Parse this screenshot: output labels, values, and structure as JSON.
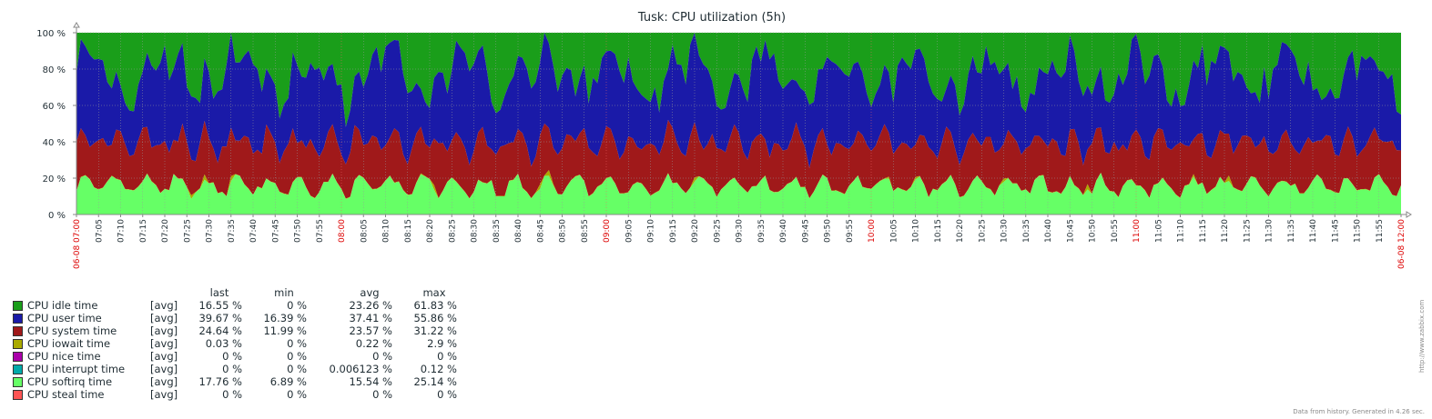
{
  "chart_data": {
    "type": "area",
    "title": "Tusk: CPU utilization (5h)",
    "stacked": true,
    "y_ticks": [
      "100 %",
      "80 %",
      "60 %",
      "40 %",
      "20 %",
      "0 %"
    ],
    "ylim": [
      0,
      100
    ],
    "x_start_label": "06-08 07:00",
    "x_end_label": "06-08 12:00",
    "x_tick_labels": [
      "07:05",
      "07:10",
      "07:15",
      "07:20",
      "07:25",
      "07:30",
      "07:35",
      "07:40",
      "07:45",
      "07:50",
      "07:55",
      "08:00",
      "08:05",
      "08:10",
      "08:15",
      "08:20",
      "08:25",
      "08:30",
      "08:35",
      "08:40",
      "08:45",
      "08:50",
      "08:55",
      "09:00",
      "09:05",
      "09:10",
      "09:15",
      "09:20",
      "09:25",
      "09:30",
      "09:35",
      "09:40",
      "09:45",
      "09:50",
      "09:55",
      "10:00",
      "10:05",
      "10:10",
      "10:15",
      "10:20",
      "10:25",
      "10:30",
      "10:35",
      "10:40",
      "10:45",
      "10:50",
      "10:55",
      "11:00",
      "11:05",
      "11:10",
      "11:15",
      "11:20",
      "11:25",
      "11:30",
      "11:35",
      "11:40",
      "11:45",
      "11:50",
      "11:55"
    ],
    "hour_tick_labels": [
      "08:00",
      "09:00",
      "10:00",
      "11:00"
    ],
    "series": [
      {
        "name": "CPU softirq time",
        "color": "#66ff66",
        "min": 6.89,
        "avg": 15.54,
        "max": 25.14
      },
      {
        "name": "CPU iowait time",
        "color": "#aaaa00",
        "min": 0,
        "avg": 0.22,
        "max": 2.9
      },
      {
        "name": "CPU system time",
        "color": "#a0191a",
        "min": 11.99,
        "avg": 23.57,
        "max": 31.22
      },
      {
        "name": "CPU user time",
        "color": "#1a1aa8",
        "min": 16.39,
        "avg": 37.41,
        "max": 55.86
      },
      {
        "name": "CPU idle time",
        "color": "#1a9e1a",
        "min": 0,
        "avg": 23.26,
        "max": 61.83
      }
    ]
  },
  "legend": {
    "headers": [
      "last",
      "min",
      "avg",
      "max"
    ],
    "rows": [
      {
        "name": "CPU idle time",
        "func": "[avg]",
        "last": "16.55 %",
        "min": "0 %",
        "avg": "23.26 %",
        "max": "61.83 %",
        "color": "#1a9e1a"
      },
      {
        "name": "CPU user time",
        "func": "[avg]",
        "last": "39.67 %",
        "min": "16.39 %",
        "avg": "37.41 %",
        "max": "55.86 %",
        "color": "#1a1aa8"
      },
      {
        "name": "CPU system time",
        "func": "[avg]",
        "last": "24.64 %",
        "min": "11.99 %",
        "avg": "23.57 %",
        "max": "31.22 %",
        "color": "#a0191a"
      },
      {
        "name": "CPU iowait time",
        "func": "[avg]",
        "last": "0.03 %",
        "min": "0 %",
        "avg": "0.22 %",
        "max": "2.9 %",
        "color": "#aaaa00"
      },
      {
        "name": "CPU nice time",
        "func": "[avg]",
        "last": "0 %",
        "min": "0 %",
        "avg": "0 %",
        "max": "0 %",
        "color": "#aa00aa"
      },
      {
        "name": "CPU interrupt time",
        "func": "[avg]",
        "last": "0 %",
        "min": "0 %",
        "avg": "0.006123 %",
        "max": "0.12 %",
        "color": "#00aaaa"
      },
      {
        "name": "CPU softirq time",
        "func": "[avg]",
        "last": "17.76 %",
        "min": "6.89 %",
        "avg": "15.54 %",
        "max": "25.14 %",
        "color": "#66ff66"
      },
      {
        "name": "CPU steal time",
        "func": "[avg]",
        "last": "0 %",
        "min": "0 %",
        "avg": "0 %",
        "max": "0 %",
        "color": "#ff5555"
      }
    ]
  },
  "footer": "Data from history. Generated in 4.26 sec.",
  "side_url": "http://www.zabbix.com"
}
